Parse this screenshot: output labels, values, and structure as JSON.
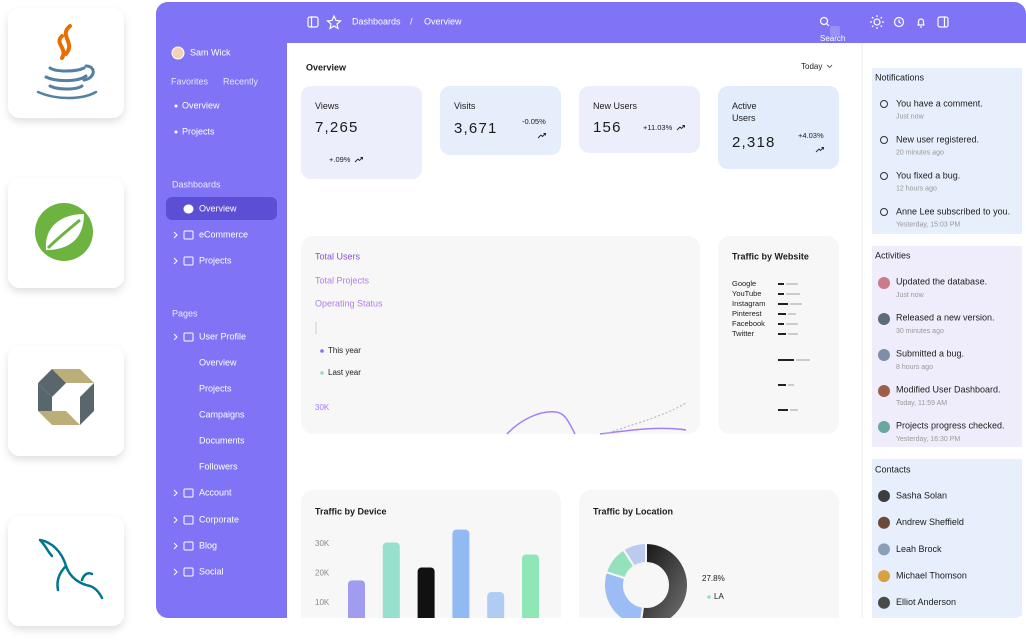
{
  "topbar": {
    "breadcrumb": [
      "Dashboards",
      "Overview"
    ],
    "separator": "/",
    "search": "Search"
  },
  "sidebar": {
    "user": "Sam Wick",
    "tabs": [
      "Favorites",
      "Recently"
    ],
    "favorites": [
      "Overview",
      "Projects"
    ],
    "dashboards": {
      "title": "Dashboards",
      "items": [
        "Overview",
        "eCommerce",
        "Projects"
      ]
    },
    "pages": {
      "title": "Pages",
      "items": [
        "User Profile",
        "Overview",
        "Projects",
        "Campaigns",
        "Documents",
        "Followers",
        "Account",
        "Corporate",
        "Blog",
        "Social"
      ]
    }
  },
  "overview": {
    "title": "Overview",
    "range": "Today",
    "cards": [
      {
        "label": "Views",
        "value": "7,265",
        "change": "+.09%"
      },
      {
        "label": "Visits",
        "value": "3,671",
        "change": "-0.05%"
      },
      {
        "label": "New Users",
        "value": "156",
        "change": "+11.03%"
      },
      {
        "label": "Active Users",
        "value": "2,318",
        "change": "+4.03%"
      }
    ]
  },
  "users_chart": {
    "tabs": [
      "Total Users",
      "Total Projects",
      "Operating Status"
    ],
    "legend": [
      "This year",
      "Last year"
    ],
    "ytick": "30K"
  },
  "traffic_website": {
    "title": "Traffic by Website",
    "sites": [
      "Google",
      "YouTube",
      "Instagram",
      "Pinterest",
      "Facebook",
      "Twitter"
    ]
  },
  "traffic_device": {
    "title": "Traffic by Device",
    "ylim": [
      0,
      35000
    ],
    "yticks": [
      {
        "value": 30000,
        "label": "30K"
      },
      {
        "value": 20000,
        "label": "20K"
      },
      {
        "value": 10000,
        "label": "10K"
      }
    ],
    "values": [
      17600,
      30500,
      22000,
      34900,
      13600,
      26400
    ],
    "colors": [
      "#a09cf0",
      "#96e0cd",
      "#111111",
      "#91baf4",
      "#b0cbf4",
      "#8fe6b6"
    ]
  },
  "traffic_location": {
    "title": "Traffic by Location",
    "values": [
      52.2,
      27.8,
      11,
      9
    ],
    "value_labels": [
      null,
      "27.8%",
      null,
      null
    ],
    "colors": [
      "#2b2b2b",
      "#9bbcf5",
      "#93e2bc",
      "#bccaf0"
    ],
    "legend": [
      "LA"
    ]
  },
  "notifications": {
    "title": "Notifications",
    "items": [
      {
        "text": "You have a comment.",
        "time": "Just now"
      },
      {
        "text": "New user registered.",
        "time": "20 minutes ago"
      },
      {
        "text": "You fixed a bug.",
        "time": "12 hours ago"
      },
      {
        "text": "Anne Lee subscribed to you.",
        "time": "Yesterday, 15:03 PM"
      }
    ]
  },
  "activities": {
    "title": "Activities",
    "items": [
      {
        "text": "Updated the database.",
        "time": "Just now"
      },
      {
        "text": "Released a new version.",
        "time": "30 minutes ago"
      },
      {
        "text": "Submitted a bug.",
        "time": "8 hours ago"
      },
      {
        "text": "Modified User Dashboard.",
        "time": "Today, 11:59 AM"
      },
      {
        "text": "Projects progress checked.",
        "time": "Yesterday, 16:30 PM"
      }
    ]
  },
  "contacts": {
    "title": "Contacts",
    "names": [
      "Sasha Solan",
      "Andrew Sheffield",
      "Leah Brock",
      "Michael Thomson",
      "Elliot Anderson"
    ]
  }
}
